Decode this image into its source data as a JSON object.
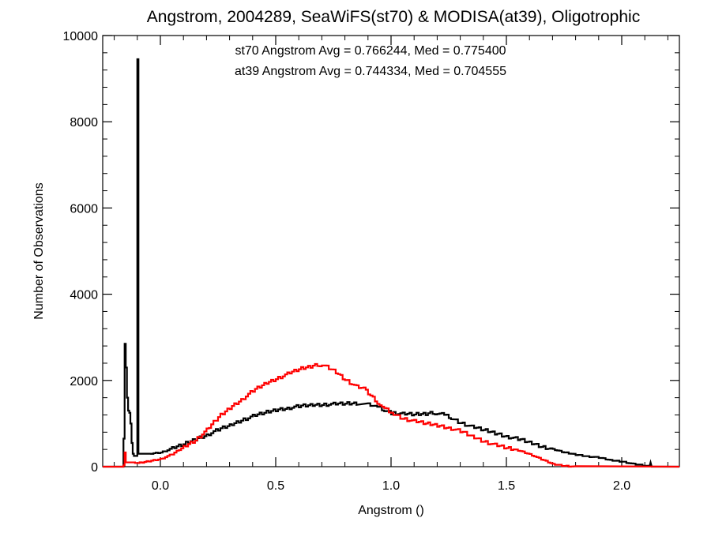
{
  "chart_data": {
    "type": "line",
    "title": "Angstrom, 2004289, SeaWiFS(st70) & MODISA(at39), Oligotrophic",
    "xlabel": "Angstrom ()",
    "ylabel": "Number of Observations",
    "xlim": [
      -0.25,
      2.25
    ],
    "ylim": [
      0,
      10000
    ],
    "x_ticks": [
      0.0,
      0.5,
      1.0,
      1.5,
      2.0
    ],
    "x_tick_labels": [
      "0.0",
      "0.5",
      "1.0",
      "1.5",
      "2.0"
    ],
    "y_ticks": [
      0,
      2000,
      4000,
      6000,
      8000,
      10000
    ],
    "y_tick_labels": [
      "0",
      "2000",
      "4000",
      "6000",
      "8000",
      "10000"
    ],
    "grid": false,
    "step_style": "histogram",
    "annotations": [
      {
        "text": "st70 Angstrom Avg = 0.766244, Med = 0.775400",
        "color": "#000000"
      },
      {
        "text": "at39 Angstrom Avg = 0.744334, Med = 0.704555",
        "color": "#ff0000"
      }
    ],
    "series": [
      {
        "color": "#000000",
        "points": [
          [
            -0.25,
            0
          ],
          [
            -0.16,
            0
          ],
          [
            -0.16,
            650
          ],
          [
            -0.155,
            650
          ],
          [
            -0.155,
            2850
          ],
          [
            -0.15,
            2850
          ],
          [
            -0.15,
            2300
          ],
          [
            -0.145,
            2300
          ],
          [
            -0.145,
            1600
          ],
          [
            -0.14,
            1600
          ],
          [
            -0.14,
            1300
          ],
          [
            -0.135,
            1300
          ],
          [
            -0.135,
            1250
          ],
          [
            -0.13,
            1250
          ],
          [
            -0.13,
            1000
          ],
          [
            -0.125,
            1000
          ],
          [
            -0.125,
            550
          ],
          [
            -0.12,
            550
          ],
          [
            -0.12,
            300
          ],
          [
            -0.115,
            300
          ],
          [
            -0.115,
            250
          ],
          [
            -0.1,
            250
          ],
          [
            -0.1,
            9450
          ],
          [
            -0.095,
            9450
          ],
          [
            -0.095,
            300
          ],
          [
            -0.05,
            300
          ],
          [
            0.0,
            330
          ],
          [
            0.05,
            420
          ],
          [
            0.1,
            520
          ],
          [
            0.15,
            640
          ],
          [
            0.2,
            740
          ],
          [
            0.25,
            860
          ],
          [
            0.3,
            960
          ],
          [
            0.35,
            1080
          ],
          [
            0.4,
            1170
          ],
          [
            0.45,
            1250
          ],
          [
            0.5,
            1320
          ],
          [
            0.55,
            1360
          ],
          [
            0.6,
            1400
          ],
          [
            0.65,
            1430
          ],
          [
            0.7,
            1440
          ],
          [
            0.75,
            1450
          ],
          [
            0.8,
            1460
          ],
          [
            0.85,
            1470
          ],
          [
            0.9,
            1470
          ],
          [
            0.93,
            1400
          ],
          [
            0.96,
            1330
          ],
          [
            1.0,
            1250
          ],
          [
            1.05,
            1220
          ],
          [
            1.1,
            1210
          ],
          [
            1.15,
            1230
          ],
          [
            1.18,
            1260
          ],
          [
            1.22,
            1210
          ],
          [
            1.25,
            1150
          ],
          [
            1.3,
            1020
          ],
          [
            1.35,
            920
          ],
          [
            1.4,
            850
          ],
          [
            1.45,
            780
          ],
          [
            1.5,
            700
          ],
          [
            1.55,
            640
          ],
          [
            1.6,
            560
          ],
          [
            1.65,
            470
          ],
          [
            1.7,
            400
          ],
          [
            1.75,
            330
          ],
          [
            1.8,
            280
          ],
          [
            1.85,
            240
          ],
          [
            1.9,
            210
          ],
          [
            1.95,
            150
          ],
          [
            2.0,
            120
          ],
          [
            2.05,
            60
          ],
          [
            2.1,
            20
          ],
          [
            2.12,
            0
          ],
          [
            2.125,
            100
          ],
          [
            2.13,
            0
          ],
          [
            2.25,
            0
          ]
        ]
      },
      {
        "color": "#ff0000",
        "points": [
          [
            -0.25,
            0
          ],
          [
            -0.16,
            0
          ],
          [
            -0.16,
            30
          ],
          [
            -0.155,
            30
          ],
          [
            -0.155,
            330
          ],
          [
            -0.15,
            330
          ],
          [
            -0.15,
            100
          ],
          [
            -0.12,
            100
          ],
          [
            -0.1,
            80
          ],
          [
            -0.05,
            130
          ],
          [
            0.0,
            180
          ],
          [
            0.05,
            290
          ],
          [
            0.1,
            460
          ],
          [
            0.15,
            620
          ],
          [
            0.2,
            850
          ],
          [
            0.25,
            1150
          ],
          [
            0.3,
            1370
          ],
          [
            0.35,
            1560
          ],
          [
            0.4,
            1760
          ],
          [
            0.45,
            1920
          ],
          [
            0.5,
            2040
          ],
          [
            0.55,
            2150
          ],
          [
            0.6,
            2260
          ],
          [
            0.65,
            2330
          ],
          [
            0.68,
            2370
          ],
          [
            0.7,
            2360
          ],
          [
            0.75,
            2230
          ],
          [
            0.8,
            2020
          ],
          [
            0.85,
            1850
          ],
          [
            0.88,
            1800
          ],
          [
            0.9,
            1700
          ],
          [
            0.93,
            1550
          ],
          [
            0.96,
            1380
          ],
          [
            1.0,
            1250
          ],
          [
            1.05,
            1120
          ],
          [
            1.1,
            1050
          ],
          [
            1.15,
            1000
          ],
          [
            1.2,
            960
          ],
          [
            1.25,
            900
          ],
          [
            1.3,
            820
          ],
          [
            1.35,
            700
          ],
          [
            1.4,
            590
          ],
          [
            1.45,
            500
          ],
          [
            1.5,
            430
          ],
          [
            1.55,
            380
          ],
          [
            1.6,
            290
          ],
          [
            1.65,
            170
          ],
          [
            1.7,
            60
          ],
          [
            1.75,
            20
          ],
          [
            1.8,
            0
          ],
          [
            2.25,
            0
          ]
        ]
      }
    ]
  }
}
